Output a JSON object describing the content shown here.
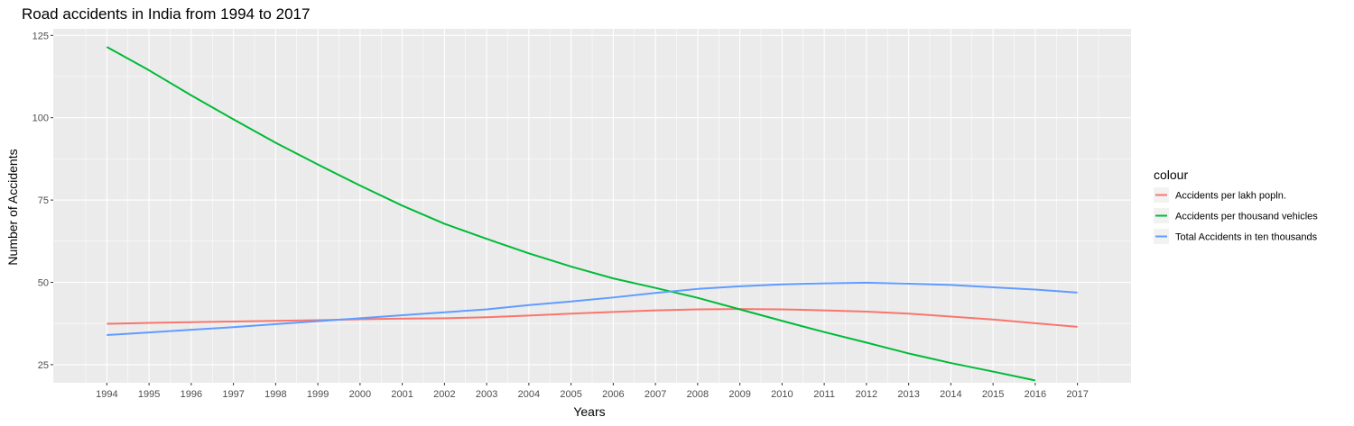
{
  "chart_data": {
    "type": "line",
    "title": "Road accidents in India from 1994 to 2017",
    "xlabel": "Years",
    "ylabel": "Number of Accidents",
    "x": [
      1994,
      1995,
      1996,
      1997,
      1998,
      1999,
      2000,
      2001,
      2002,
      2003,
      2004,
      2005,
      2006,
      2007,
      2008,
      2009,
      2010,
      2011,
      2012,
      2013,
      2014,
      2015,
      2016,
      2017
    ],
    "x_ticks": [
      "1994",
      "1995",
      "1996",
      "1997",
      "1998",
      "1999",
      "2000",
      "2001",
      "2002",
      "2003",
      "2004",
      "2005",
      "2006",
      "2007",
      "2008",
      "2009",
      "2010",
      "2011",
      "2012",
      "2013",
      "2014",
      "2015",
      "2016",
      "2017"
    ],
    "y_ticks": [
      "25",
      "50",
      "75",
      "100",
      "125"
    ],
    "ylim": [
      19.5,
      127
    ],
    "grid": true,
    "legend_position": "right",
    "legend_title": "colour",
    "series": [
      {
        "name": "Accidents per lakh popln.",
        "color": "#F8766D",
        "values": [
          37.4,
          37.7,
          37.9,
          38.1,
          38.3,
          38.5,
          38.8,
          39.0,
          39.1,
          39.4,
          39.9,
          40.5,
          41.0,
          41.5,
          41.8,
          41.9,
          41.8,
          41.5,
          41.1,
          40.5,
          39.6,
          38.7,
          37.6,
          36.5
        ]
      },
      {
        "name": "Accidents per thousand vehicles",
        "color": "#00BA38",
        "values": [
          121.5,
          114.4,
          106.8,
          99.5,
          92.4,
          85.8,
          79.4,
          73.3,
          67.8,
          63.2,
          58.8,
          54.8,
          51.2,
          48.3,
          45.3,
          41.8,
          38.3,
          34.9,
          31.7,
          28.4,
          25.5,
          22.9,
          20.2,
          null
        ]
      },
      {
        "name": "Total Accidents in ten thousands",
        "color": "#619CFF",
        "values": [
          34.0,
          34.8,
          35.6,
          36.4,
          37.3,
          38.2,
          39.1,
          40.0,
          40.9,
          41.8,
          43.1,
          44.2,
          45.4,
          46.8,
          48.0,
          48.8,
          49.4,
          49.7,
          49.9,
          49.6,
          49.2,
          48.5,
          47.8,
          46.9
        ]
      }
    ]
  }
}
